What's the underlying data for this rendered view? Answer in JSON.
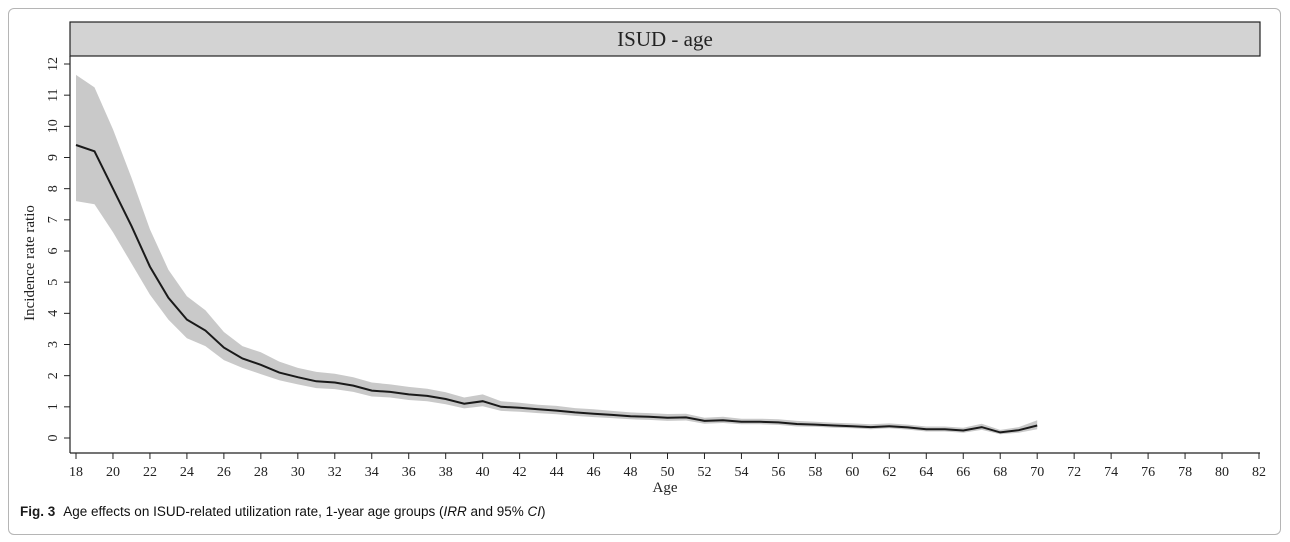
{
  "caption": {
    "fig_label": "Fig. 3",
    "text_before": "Age effects on ISUD-related utilization rate, 1-year age groups (",
    "irr": "IRR",
    "text_mid": " and 95% ",
    "ci": "CI",
    "text_after": ")"
  },
  "chart_data": {
    "type": "line",
    "title": "ISUD - age",
    "xlabel": "Age",
    "ylabel": "Incidence rate ratio",
    "xlim": [
      18,
      82
    ],
    "ylim": [
      0,
      12
    ],
    "xticks": [
      18,
      20,
      22,
      24,
      26,
      28,
      30,
      32,
      34,
      36,
      38,
      40,
      42,
      44,
      46,
      48,
      50,
      52,
      54,
      56,
      58,
      60,
      62,
      64,
      66,
      68,
      70,
      72,
      74,
      76,
      78,
      80,
      82
    ],
    "yticks": [
      0,
      1,
      2,
      3,
      4,
      5,
      6,
      7,
      8,
      9,
      10,
      11,
      12
    ],
    "colors": {
      "line": "#1a1a1a",
      "band": "#c9c9c9",
      "title_bar": "#d3d3d3"
    },
    "series": [
      {
        "x": [
          18,
          19,
          20,
          21,
          22,
          23,
          24,
          25,
          26,
          27,
          28,
          29,
          30,
          31,
          32,
          33,
          34,
          35,
          36,
          37,
          38,
          39,
          40,
          41,
          42,
          43,
          44,
          45,
          46,
          47,
          48,
          49,
          50,
          51,
          52,
          53,
          54,
          55,
          56,
          57,
          58,
          59,
          60,
          61,
          62,
          63,
          64,
          65,
          66,
          67,
          68,
          69,
          70
        ],
        "y": [
          9.4,
          9.2,
          8.0,
          6.8,
          5.5,
          4.5,
          3.8,
          3.45,
          2.9,
          2.55,
          2.35,
          2.1,
          1.95,
          1.82,
          1.78,
          1.68,
          1.52,
          1.48,
          1.4,
          1.35,
          1.25,
          1.1,
          1.18,
          1.0,
          0.97,
          0.92,
          0.88,
          0.82,
          0.78,
          0.74,
          0.7,
          0.68,
          0.65,
          0.66,
          0.55,
          0.57,
          0.52,
          0.52,
          0.5,
          0.45,
          0.43,
          0.4,
          0.38,
          0.35,
          0.38,
          0.34,
          0.28,
          0.28,
          0.24,
          0.35,
          0.18,
          0.25,
          0.4
        ],
        "lower": [
          7.6,
          7.5,
          6.6,
          5.6,
          4.6,
          3.8,
          3.2,
          2.95,
          2.5,
          2.25,
          2.05,
          1.85,
          1.72,
          1.6,
          1.57,
          1.48,
          1.33,
          1.3,
          1.22,
          1.18,
          1.08,
          0.95,
          1.02,
          0.87,
          0.84,
          0.8,
          0.76,
          0.71,
          0.67,
          0.64,
          0.6,
          0.58,
          0.55,
          0.56,
          0.46,
          0.48,
          0.44,
          0.44,
          0.42,
          0.37,
          0.36,
          0.33,
          0.31,
          0.28,
          0.31,
          0.27,
          0.21,
          0.21,
          0.17,
          0.26,
          0.12,
          0.17,
          0.28
        ],
        "upper": [
          11.65,
          11.25,
          9.9,
          8.35,
          6.7,
          5.4,
          4.55,
          4.1,
          3.4,
          2.95,
          2.75,
          2.45,
          2.25,
          2.12,
          2.06,
          1.95,
          1.78,
          1.72,
          1.64,
          1.58,
          1.47,
          1.3,
          1.4,
          1.18,
          1.13,
          1.07,
          1.03,
          0.96,
          0.92,
          0.87,
          0.82,
          0.8,
          0.77,
          0.78,
          0.65,
          0.68,
          0.62,
          0.62,
          0.6,
          0.55,
          0.52,
          0.49,
          0.47,
          0.44,
          0.47,
          0.43,
          0.37,
          0.37,
          0.33,
          0.46,
          0.26,
          0.35,
          0.57
        ]
      }
    ]
  }
}
